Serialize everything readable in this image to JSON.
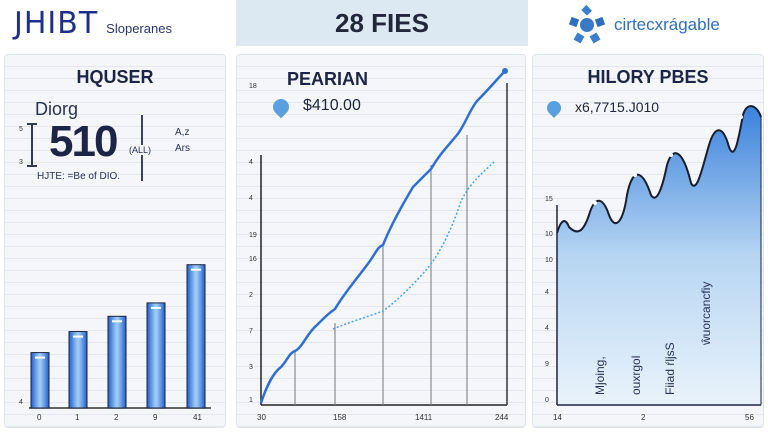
{
  "header": {
    "brand": "JHIBT",
    "brand_subtitle": "Sloperanes",
    "title": "28 FIES",
    "partner_logo_text": "cirtecxrágable"
  },
  "colors": {
    "primary_blue": "#2f6fd6",
    "light_blue": "#4aa3e8",
    "navy_text": "#1c2447",
    "title_bg": "#dde9f2",
    "panel_bg": "#f4f6f9"
  },
  "panels": {
    "left": {
      "title": "HQUSER",
      "label": "Diorg",
      "big_value": "510",
      "unit": "(ALL)",
      "side_labels": [
        "A,z",
        "Ars"
      ],
      "note": "HJTE: =Be of DIO.",
      "gauge_ticks": [
        "5",
        "3"
      ],
      "y_tick": "4"
    },
    "middle": {
      "title": "PEARIAN",
      "icon": "money-drop-icon",
      "value": "$410.00",
      "y_ticks": [
        "18",
        "4",
        "4",
        "19",
        "16",
        "2",
        "7",
        "3",
        "1"
      ],
      "x_ticks": [
        "30",
        "158",
        "1411",
        "244"
      ]
    },
    "right": {
      "title": "HILORY PBES",
      "icon": "money-drop-icon",
      "value": "x6,7715.J010",
      "y_ticks": [
        "15",
        "10",
        "10",
        "4",
        "4",
        "9",
        "0"
      ],
      "x_ticks": [
        "14",
        "2",
        "56"
      ],
      "annotations": [
        "Mjoing,",
        "ouxrgol",
        "Fiiad ŕljsS",
        "ŵuorcancfiy"
      ]
    }
  },
  "chart_data": [
    {
      "type": "bar",
      "title": "HQUSER",
      "categories": [
        "0",
        "1",
        "2",
        "9",
        "41"
      ],
      "values": [
        29,
        40,
        48,
        55,
        75
      ],
      "xlabel": "",
      "ylabel": "",
      "ylim": [
        0,
        85
      ],
      "grid": true
    },
    {
      "type": "line",
      "title": "PEARIAN",
      "x_ticks": [
        "30",
        "158",
        "1411",
        "244"
      ],
      "y_ticks": [
        "1",
        "3",
        "7",
        "2",
        "16",
        "19",
        "4",
        "4",
        "18"
      ],
      "series": [
        {
          "name": "primary",
          "style": "solid",
          "color": "#2f6fd6",
          "values": [
            0,
            10,
            18,
            24,
            30,
            38,
            48,
            58,
            66,
            74,
            84,
            100
          ]
        },
        {
          "name": "secondary",
          "style": "dotted",
          "color": "#4aa3e8",
          "values": [
            null,
            null,
            null,
            null,
            22,
            26,
            32,
            40,
            50,
            62,
            72
          ]
        }
      ],
      "grid": true
    },
    {
      "type": "area",
      "title": "HILORY PBES",
      "x_ticks": [
        "14",
        "2",
        "56"
      ],
      "y_ticks": [
        "0",
        "9",
        "4",
        "4",
        "10",
        "10",
        "15"
      ],
      "series": [
        {
          "name": "history",
          "color": "#2f6fd6",
          "values": [
            48,
            50,
            49,
            60,
            52,
            70,
            62,
            80,
            68,
            88,
            70,
            92,
            86,
            98,
            95
          ]
        }
      ],
      "grid": true
    }
  ]
}
